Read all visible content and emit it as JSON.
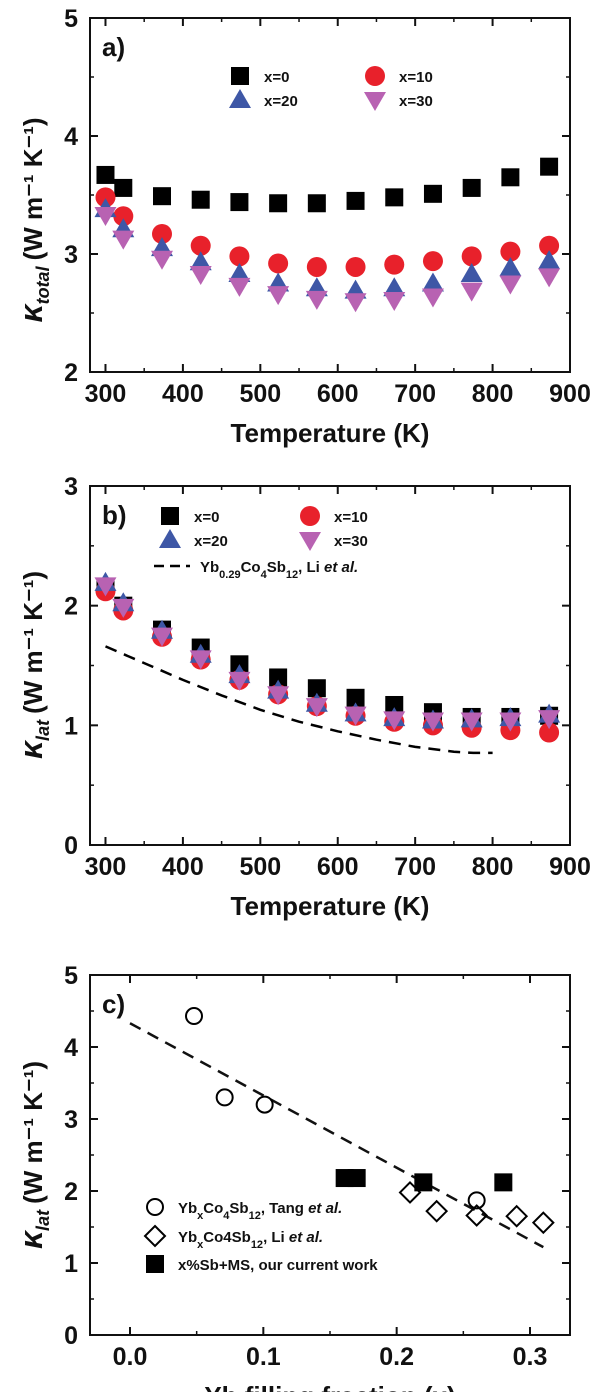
{
  "chart_data": [
    {
      "panel_label": "a)",
      "type": "scatter",
      "xlabel": "Temperature (K)",
      "ylabel": {
        "main": "κ",
        "sub": "total",
        "units": "(W m⁻¹ K⁻¹)"
      },
      "xlim": [
        280,
        900
      ],
      "ylim": [
        2,
        5
      ],
      "xticks": [
        300,
        400,
        500,
        600,
        700,
        800,
        900
      ],
      "yticks": [
        2,
        3,
        4,
        5
      ],
      "xtick_labels": [
        "300",
        "400",
        "500",
        "600",
        "700",
        "800",
        "900"
      ],
      "ytick_labels": [
        "2",
        "3",
        "4",
        "5"
      ],
      "legend_position": "top-right",
      "series": [
        {
          "name": "x=0",
          "marker": "square",
          "color": "#000000",
          "x": [
            300,
            323,
            373,
            423,
            473,
            523,
            573,
            623,
            673,
            723,
            773,
            823,
            873
          ],
          "y": [
            3.67,
            3.56,
            3.49,
            3.46,
            3.44,
            3.43,
            3.43,
            3.45,
            3.48,
            3.51,
            3.56,
            3.65,
            3.74
          ]
        },
        {
          "name": "x=10",
          "marker": "circle",
          "color": "#e8212b",
          "x": [
            300,
            323,
            373,
            423,
            473,
            523,
            573,
            623,
            673,
            723,
            773,
            823,
            873
          ],
          "y": [
            3.48,
            3.32,
            3.17,
            3.07,
            2.98,
            2.92,
            2.89,
            2.89,
            2.91,
            2.94,
            2.98,
            3.02,
            3.07
          ]
        },
        {
          "name": "x=20",
          "marker": "triangle-up",
          "color": "#3e57a6",
          "x": [
            300,
            323,
            373,
            423,
            473,
            523,
            573,
            623,
            673,
            723,
            773,
            823,
            873
          ],
          "y": [
            3.38,
            3.21,
            3.05,
            2.93,
            2.83,
            2.75,
            2.71,
            2.69,
            2.71,
            2.75,
            2.83,
            2.88,
            2.94
          ]
        },
        {
          "name": "x=30",
          "marker": "triangle-down",
          "color": "#b862b2",
          "x": [
            300,
            323,
            373,
            423,
            473,
            523,
            573,
            623,
            673,
            723,
            773,
            823,
            873
          ],
          "y": [
            3.33,
            3.13,
            2.96,
            2.83,
            2.73,
            2.66,
            2.62,
            2.6,
            2.61,
            2.64,
            2.69,
            2.75,
            2.81
          ]
        }
      ]
    },
    {
      "panel_label": "b)",
      "type": "scatter",
      "xlabel": "Temperature (K)",
      "ylabel": {
        "main": "κ",
        "sub": "lat",
        "units": "(W m⁻¹ K⁻¹)"
      },
      "xlim": [
        280,
        900
      ],
      "ylim": [
        0,
        3
      ],
      "xticks": [
        300,
        400,
        500,
        600,
        700,
        800,
        900
      ],
      "yticks": [
        0,
        1,
        2,
        3
      ],
      "xtick_labels": [
        "300",
        "400",
        "500",
        "600",
        "700",
        "800",
        "900"
      ],
      "ytick_labels": [
        "0",
        "1",
        "2",
        "3"
      ],
      "legend_position": "top-right",
      "series": [
        {
          "name": "x=0",
          "marker": "square",
          "color": "#000000",
          "x": [
            300,
            323,
            373,
            423,
            473,
            523,
            573,
            623,
            673,
            723,
            773,
            823,
            873
          ],
          "y": [
            2.16,
            2.0,
            1.8,
            1.65,
            1.51,
            1.4,
            1.31,
            1.23,
            1.17,
            1.11,
            1.07,
            1.07,
            1.08
          ]
        },
        {
          "name": "x=10",
          "marker": "circle",
          "color": "#e8212b",
          "x": [
            300,
            323,
            373,
            423,
            473,
            523,
            573,
            623,
            673,
            723,
            773,
            823,
            873
          ],
          "y": [
            2.12,
            1.96,
            1.74,
            1.55,
            1.38,
            1.26,
            1.16,
            1.08,
            1.03,
            1.0,
            0.98,
            0.96,
            0.94
          ]
        },
        {
          "name": "x=20",
          "marker": "triangle-up",
          "color": "#3e57a6",
          "x": [
            300,
            323,
            373,
            423,
            473,
            523,
            573,
            623,
            673,
            723,
            773,
            823,
            873
          ],
          "y": [
            2.19,
            2.02,
            1.79,
            1.59,
            1.42,
            1.29,
            1.18,
            1.1,
            1.06,
            1.04,
            1.05,
            1.06,
            1.09
          ]
        },
        {
          "name": "x=30",
          "marker": "triangle-down",
          "color": "#b862b2",
          "x": [
            300,
            323,
            373,
            423,
            473,
            523,
            573,
            623,
            673,
            723,
            773,
            823,
            873
          ],
          "y": [
            2.17,
            1.99,
            1.75,
            1.56,
            1.38,
            1.26,
            1.16,
            1.09,
            1.05,
            1.04,
            1.04,
            1.04,
            1.06
          ]
        },
        {
          "name": "Yb0.29Co4Sb12, Li et al.",
          "marker": "dashed-line",
          "color": "#000000",
          "label_parts": [
            {
              "t": "Yb",
              "s": "normal"
            },
            {
              "t": "0.29",
              "s": "sub"
            },
            {
              "t": "Co",
              "s": "normal"
            },
            {
              "t": "4",
              "s": "sub"
            },
            {
              "t": "Sb",
              "s": "normal"
            },
            {
              "t": "12",
              "s": "sub"
            },
            {
              "t": ", Li ",
              "s": "normal"
            },
            {
              "t": "et al.",
              "s": "italic"
            }
          ],
          "x": [
            300,
            350,
            400,
            450,
            500,
            550,
            600,
            650,
            700,
            750,
            775,
            800
          ],
          "y": [
            1.66,
            1.52,
            1.38,
            1.25,
            1.13,
            1.03,
            0.95,
            0.88,
            0.82,
            0.78,
            0.77,
            0.77
          ]
        }
      ]
    },
    {
      "panel_label": "c)",
      "type": "scatter",
      "xlabel": "Yb filling fraction (x)",
      "ylabel": {
        "main": "κ",
        "sub": "lat",
        "units": "(W m⁻¹ K⁻¹)"
      },
      "xlim": [
        -0.03,
        0.33
      ],
      "ylim": [
        0,
        5
      ],
      "xticks": [
        0.0,
        0.1,
        0.2,
        0.3
      ],
      "yticks": [
        0,
        1,
        2,
        3,
        4,
        5
      ],
      "xtick_labels": [
        "0.0",
        "0.1",
        "0.2",
        "0.3"
      ],
      "ytick_labels": [
        "0",
        "1",
        "2",
        "3",
        "4",
        "5"
      ],
      "legend_position": "bottom-left",
      "trend_line": {
        "style": "dashed",
        "x": [
          0.0,
          0.31
        ],
        "y": [
          4.33,
          1.22
        ]
      },
      "series": [
        {
          "name": "YbxCo4Sb12, Tang et al.",
          "marker": "circle-open",
          "color": "#000000",
          "label_parts": [
            {
              "t": "Yb",
              "s": "normal"
            },
            {
              "t": "x",
              "s": "sub"
            },
            {
              "t": "Co",
              "s": "normal"
            },
            {
              "t": "4",
              "s": "sub"
            },
            {
              "t": "Sb",
              "s": "normal"
            },
            {
              "t": "12",
              "s": "sub"
            },
            {
              "t": ", Tang ",
              "s": "normal"
            },
            {
              "t": "et al.",
              "s": "italic"
            }
          ],
          "x": [
            0.048,
            0.071,
            0.101,
            0.26
          ],
          "y": [
            4.43,
            3.3,
            3.2,
            1.87
          ]
        },
        {
          "name": "YbxCo4Sb12, Li et al.",
          "marker": "diamond-open",
          "color": "#000000",
          "label_parts": [
            {
              "t": "Yb",
              "s": "normal"
            },
            {
              "t": "x",
              "s": "sub"
            },
            {
              "t": "Co4Sb",
              "s": "normal"
            },
            {
              "t": "12",
              "s": "sub"
            },
            {
              "t": ", Li ",
              "s": "normal"
            },
            {
              "t": "et al.",
              "s": "italic"
            }
          ],
          "x": [
            0.21,
            0.23,
            0.26,
            0.29,
            0.31
          ],
          "y": [
            1.98,
            1.72,
            1.66,
            1.65,
            1.56
          ]
        },
        {
          "name": "x%Sb+MS, our current work",
          "marker": "square",
          "color": "#000000",
          "x": [
            0.161,
            0.17,
            0.22,
            0.28
          ],
          "y": [
            2.18,
            2.18,
            2.12,
            2.12
          ]
        }
      ]
    }
  ]
}
